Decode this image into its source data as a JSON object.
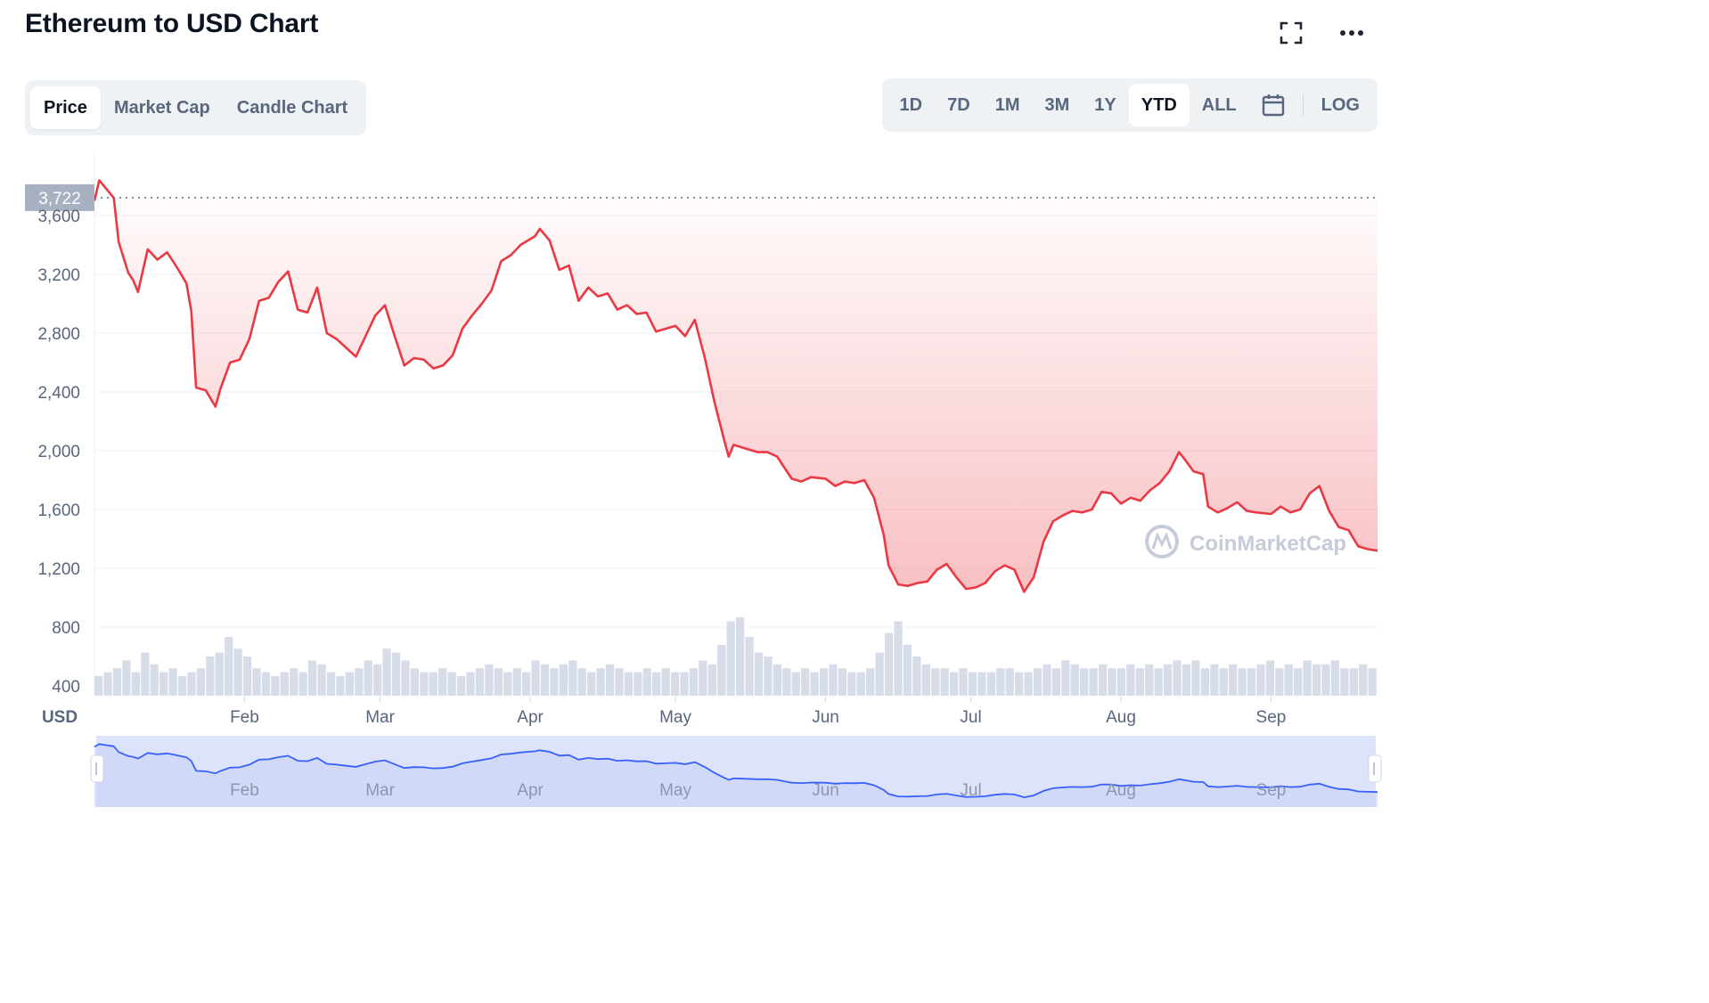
{
  "header": {
    "title": "Ethereum to USD Chart"
  },
  "tabs": [
    {
      "label": "Price",
      "active": true
    },
    {
      "label": "Market Cap",
      "active": false
    },
    {
      "label": "Candle Chart",
      "active": false
    }
  ],
  "ranges": [
    {
      "label": "1D",
      "active": false
    },
    {
      "label": "7D",
      "active": false
    },
    {
      "label": "1M",
      "active": false
    },
    {
      "label": "3M",
      "active": false
    },
    {
      "label": "1Y",
      "active": false
    },
    {
      "label": "YTD",
      "active": true
    },
    {
      "label": "ALL",
      "active": false
    }
  ],
  "log_label": "LOG",
  "icons": {
    "fullscreen": "fullscreen-icon",
    "more": "more-icon",
    "calendar": "calendar-icon"
  },
  "colors": {
    "down": "#ea3943",
    "up": "#16c784",
    "volume": "#cfd6e4",
    "navigator_fill": "#dde3fb",
    "navigator_line": "#3861fb"
  },
  "watermark": "CoinMarketCap",
  "chart_data": {
    "type": "line",
    "title": "Ethereum to USD Chart",
    "ylabel": "USD",
    "ylim": [
      320,
      3920
    ],
    "y_ticks": [
      400,
      800,
      1200,
      1600,
      2000,
      2400,
      2800,
      3200,
      3600
    ],
    "y_tick_labels": [
      "400",
      "800",
      "1,200",
      "1,600",
      "2,000",
      "2,400",
      "2,800",
      "3,200",
      "3,600"
    ],
    "x_range": [
      "2022-01-01",
      "2022-09-23"
    ],
    "x_ticks": [
      {
        "label": "Feb",
        "date": "2022-02-01"
      },
      {
        "label": "Mar",
        "date": "2022-03-01"
      },
      {
        "label": "Apr",
        "date": "2022-04-01"
      },
      {
        "label": "May",
        "date": "2022-05-01"
      },
      {
        "label": "Jun",
        "date": "2022-06-01"
      },
      {
        "label": "Jul",
        "date": "2022-07-01"
      },
      {
        "label": "Aug",
        "date": "2022-08-01"
      },
      {
        "label": "Sep",
        "date": "2022-09-01"
      }
    ],
    "reference_line": {
      "value": 3722,
      "label": "3,722"
    },
    "series": [
      {
        "x": [
          "2022-01-01",
          "2022-01-02",
          "2022-01-04",
          "2022-01-05",
          "2022-01-06",
          "2022-01-08",
          "2022-01-09",
          "2022-01-10",
          "2022-01-12",
          "2022-01-14",
          "2022-01-16",
          "2022-01-18",
          "2022-01-20",
          "2022-01-21",
          "2022-01-22",
          "2022-01-24",
          "2022-01-26",
          "2022-01-27",
          "2022-01-29",
          "2022-01-31",
          "2022-02-02",
          "2022-02-04",
          "2022-02-06",
          "2022-02-08",
          "2022-02-10",
          "2022-02-12",
          "2022-02-14",
          "2022-02-16",
          "2022-02-18",
          "2022-02-20",
          "2022-02-22",
          "2022-02-24",
          "2022-02-26",
          "2022-02-28",
          "2022-03-02",
          "2022-03-04",
          "2022-03-06",
          "2022-03-08",
          "2022-03-10",
          "2022-03-12",
          "2022-03-14",
          "2022-03-16",
          "2022-03-18",
          "2022-03-20",
          "2022-03-22",
          "2022-03-24",
          "2022-03-26",
          "2022-03-28",
          "2022-03-30",
          "2022-04-02",
          "2022-04-03",
          "2022-04-05",
          "2022-04-07",
          "2022-04-09",
          "2022-04-11",
          "2022-04-13",
          "2022-04-15",
          "2022-04-17",
          "2022-04-19",
          "2022-04-21",
          "2022-04-23",
          "2022-04-25",
          "2022-04-27",
          "2022-04-29",
          "2022-05-01",
          "2022-05-03",
          "2022-05-05",
          "2022-05-07",
          "2022-05-09",
          "2022-05-11",
          "2022-05-12",
          "2022-05-13",
          "2022-05-15",
          "2022-05-18",
          "2022-05-20",
          "2022-05-22",
          "2022-05-25",
          "2022-05-27",
          "2022-05-29",
          "2022-06-01",
          "2022-06-03",
          "2022-06-05",
          "2022-06-07",
          "2022-06-09",
          "2022-06-11",
          "2022-06-13",
          "2022-06-14",
          "2022-06-16",
          "2022-06-18",
          "2022-06-20",
          "2022-06-22",
          "2022-06-24",
          "2022-06-26",
          "2022-06-28",
          "2022-06-30",
          "2022-07-02",
          "2022-07-04",
          "2022-07-06",
          "2022-07-08",
          "2022-07-10",
          "2022-07-12",
          "2022-07-14",
          "2022-07-16",
          "2022-07-18",
          "2022-07-20",
          "2022-07-22",
          "2022-07-24",
          "2022-07-26",
          "2022-07-28",
          "2022-07-30",
          "2022-08-01",
          "2022-08-03",
          "2022-08-05",
          "2022-08-07",
          "2022-08-09",
          "2022-08-11",
          "2022-08-13",
          "2022-08-14",
          "2022-08-16",
          "2022-08-18",
          "2022-08-19",
          "2022-08-21",
          "2022-08-23",
          "2022-08-25",
          "2022-08-27",
          "2022-08-29",
          "2022-09-01",
          "2022-09-03",
          "2022-09-05",
          "2022-09-07",
          "2022-09-09",
          "2022-09-11",
          "2022-09-13",
          "2022-09-15",
          "2022-09-17",
          "2022-09-19",
          "2022-09-21",
          "2022-09-23"
        ],
        "values": [
          3700,
          3840,
          3760,
          3720,
          3420,
          3210,
          3160,
          3080,
          3370,
          3300,
          3350,
          3250,
          3140,
          2950,
          2430,
          2410,
          2300,
          2420,
          2600,
          2620,
          2760,
          3020,
          3040,
          3150,
          3220,
          2960,
          2940,
          3110,
          2800,
          2760,
          2700,
          2640,
          2780,
          2920,
          2990,
          2780,
          2580,
          2630,
          2620,
          2560,
          2580,
          2650,
          2830,
          2920,
          3000,
          3090,
          3290,
          3330,
          3400,
          3460,
          3510,
          3430,
          3230,
          3260,
          3020,
          3110,
          3050,
          3070,
          2960,
          2990,
          2930,
          2940,
          2810,
          2830,
          2850,
          2780,
          2890,
          2640,
          2340,
          2080,
          1960,
          2040,
          2020,
          1990,
          1990,
          1960,
          1810,
          1790,
          1820,
          1810,
          1760,
          1790,
          1780,
          1800,
          1680,
          1430,
          1220,
          1090,
          1080,
          1100,
          1110,
          1190,
          1230,
          1140,
          1060,
          1070,
          1100,
          1180,
          1220,
          1190,
          1040,
          1140,
          1380,
          1520,
          1560,
          1590,
          1580,
          1600,
          1720,
          1710,
          1640,
          1680,
          1660,
          1730,
          1780,
          1860,
          1990,
          1950,
          1860,
          1840,
          1620,
          1580,
          1610,
          1650,
          1590,
          1580,
          1570,
          1620,
          1580,
          1600,
          1710,
          1760,
          1590,
          1480,
          1460,
          1350,
          1330,
          1320
        ]
      }
    ],
    "volume": {
      "note": "relative daily volume bars along chart bottom",
      "values": [
        0.25,
        0.3,
        0.35,
        0.45,
        0.3,
        0.55,
        0.4,
        0.3,
        0.35,
        0.25,
        0.3,
        0.35,
        0.5,
        0.55,
        0.75,
        0.6,
        0.5,
        0.35,
        0.3,
        0.25,
        0.3,
        0.35,
        0.3,
        0.45,
        0.4,
        0.3,
        0.25,
        0.3,
        0.35,
        0.45,
        0.4,
        0.6,
        0.55,
        0.45,
        0.35,
        0.3,
        0.3,
        0.35,
        0.3,
        0.25,
        0.3,
        0.35,
        0.4,
        0.35,
        0.3,
        0.35,
        0.3,
        0.45,
        0.4,
        0.35,
        0.4,
        0.45,
        0.35,
        0.3,
        0.35,
        0.4,
        0.35,
        0.3,
        0.3,
        0.35,
        0.3,
        0.35,
        0.3,
        0.3,
        0.35,
        0.45,
        0.4,
        0.65,
        0.95,
        1.0,
        0.75,
        0.55,
        0.5,
        0.4,
        0.35,
        0.3,
        0.35,
        0.3,
        0.35,
        0.4,
        0.35,
        0.3,
        0.3,
        0.35,
        0.55,
        0.8,
        0.95,
        0.65,
        0.5,
        0.4,
        0.35,
        0.35,
        0.3,
        0.35,
        0.3,
        0.3,
        0.3,
        0.35,
        0.35,
        0.3,
        0.3,
        0.35,
        0.4,
        0.35,
        0.45,
        0.4,
        0.35,
        0.35,
        0.4,
        0.35,
        0.35,
        0.4,
        0.35,
        0.4,
        0.35,
        0.4,
        0.45,
        0.4,
        0.45,
        0.35,
        0.4,
        0.35,
        0.4,
        0.35,
        0.35,
        0.4,
        0.45,
        0.35,
        0.4,
        0.35,
        0.45,
        0.4,
        0.4,
        0.45,
        0.35,
        0.35,
        0.4,
        0.35
      ]
    }
  }
}
